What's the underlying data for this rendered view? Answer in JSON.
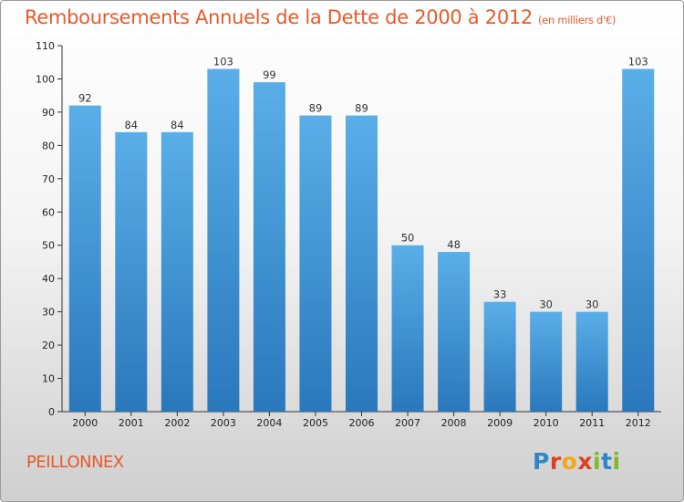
{
  "chart_data": {
    "type": "bar",
    "title": "Remboursements Annuels de la Dette de 2000 à 2012",
    "subtitle": "(en milliers d'€)",
    "categories": [
      "2000",
      "2001",
      "2002",
      "2003",
      "2004",
      "2005",
      "2006",
      "2007",
      "2008",
      "2009",
      "2010",
      "2011",
      "2012"
    ],
    "values": [
      92,
      84,
      84,
      103,
      99,
      89,
      89,
      50,
      48,
      33,
      30,
      30,
      103
    ],
    "ylim": [
      0,
      110
    ],
    "yticks": [
      0,
      10,
      20,
      30,
      40,
      50,
      60,
      70,
      80,
      90,
      100,
      110
    ],
    "grid": false,
    "bar_color_top": "#5aaee8",
    "bar_color_bottom": "#2a78bc"
  },
  "footer": {
    "commune": "PEILLONNEX",
    "logo_letters": [
      {
        "ch": "P",
        "color": "#2d86c8"
      },
      {
        "ch": "r",
        "color": "#e04020"
      },
      {
        "ch": "o",
        "color": "#f0a818"
      },
      {
        "ch": "x",
        "color": "#e04020"
      },
      {
        "ch": "i",
        "color": "#80b828"
      },
      {
        "ch": "t",
        "color": "#2d86c8"
      },
      {
        "ch": "i",
        "color": "#80b828"
      }
    ]
  },
  "colors": {
    "title": "#e85a2c",
    "axis": "#333333"
  }
}
